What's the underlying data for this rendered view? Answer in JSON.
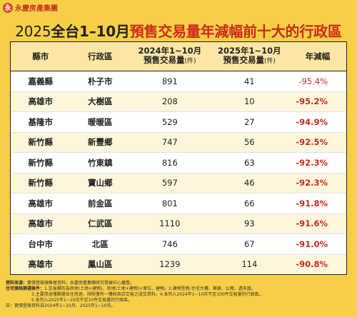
{
  "brand": {
    "logo_glyph": "永",
    "name": "永慶房產集團"
  },
  "title": {
    "year": "2025",
    "lead": "全台1–10月",
    "accent": "預售交易量年減幅前十大的行政區"
  },
  "table": {
    "headers": {
      "city": "縣市",
      "district": "行政區",
      "y2024_line1": "2024年1~10月",
      "y2024_line2": "預售交易量",
      "y2024_unit": "(件)",
      "y2025_line1": "2025年1~10月",
      "y2025_line2": "預售交易量",
      "y2025_unit": "(件)",
      "drop": "年減幅"
    },
    "rows": [
      {
        "city": "嘉義縣",
        "district": "朴子市",
        "y2024": "891",
        "y2025": "41",
        "drop": "-95.4%"
      },
      {
        "city": "高雄市",
        "district": "大樹區",
        "y2024": "208",
        "y2025": "10",
        "drop": "-95.2%"
      },
      {
        "city": "基隆市",
        "district": "暖暖區",
        "y2024": "529",
        "y2025": "27",
        "drop": "-94.9%"
      },
      {
        "city": "新竹縣",
        "district": "新豐鄉",
        "y2024": "747",
        "y2025": "56",
        "drop": "-92.5%"
      },
      {
        "city": "新竹縣",
        "district": "竹東鎮",
        "y2024": "816",
        "y2025": "63",
        "drop": "-92.3%"
      },
      {
        "city": "新竹縣",
        "district": "寶山鄉",
        "y2024": "597",
        "y2025": "46",
        "drop": "-92.3%"
      },
      {
        "city": "高雄市",
        "district": "前金區",
        "y2024": "801",
        "y2025": "66",
        "drop": "-91.8%"
      },
      {
        "city": "高雄市",
        "district": "仁武區",
        "y2024": "1110",
        "y2025": "93",
        "drop": "-91.6%"
      },
      {
        "city": "台中市",
        "district": "北區",
        "y2024": "746",
        "y2025": "67",
        "drop": "-91.0%"
      },
      {
        "city": "高雄市",
        "district": "鳳山區",
        "y2024": "1239",
        "y2025": "114",
        "drop": "-90.8%"
      }
    ]
  },
  "notes": {
    "source_label": "資料來源：",
    "source_text": "實價登錄預售屋資料；永慶房產集團研究發展中心彙整。",
    "def_label": "住宅價格篩選條件：",
    "def_lines": [
      "1.交易標的為房地(土地+建物)、房地(土地+建物)+車位、建物。2.建物型態:住宅大樓、華廈、公寓、透天厝。",
      "3.主要用途僅篩選含住用途，排除僅有一樓純商店交易之成交資料。4.本列入2024年1~10月不足100件交易量的行政區。",
      "5.本列入2025年1~10月不足10件交易量的行政區。"
    ],
    "footnote": "註：實價登錄資料自2024年1~10月、2025年1~10月。"
  }
}
